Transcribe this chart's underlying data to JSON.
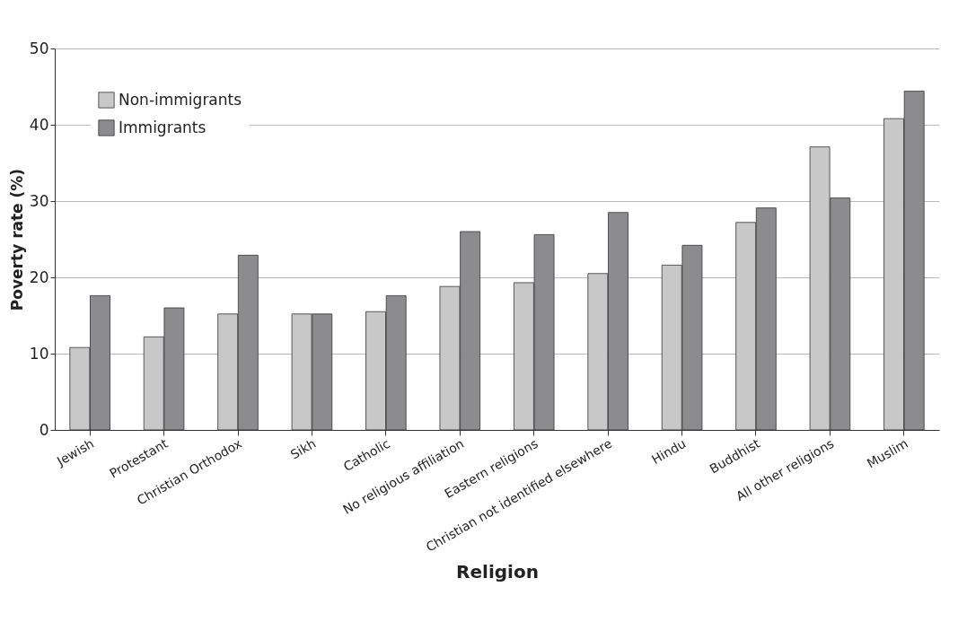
{
  "chart_data": {
    "type": "bar",
    "xlabel": "Religion",
    "ylabel": "Poverty rate (%)",
    "categories": [
      "Jewish",
      "Protestant",
      "Christian Orthodox",
      "Sikh",
      "Catholic",
      "No religious affiliation",
      "Eastern religions",
      "Christian not identified elsewhere",
      "Hindu",
      "Buddhist",
      "All other religions",
      "Muslim"
    ],
    "series": [
      {
        "name": "Non-immigrants",
        "color": "#c8c8c8",
        "values": [
          10.8,
          12.2,
          15.2,
          15.2,
          15.5,
          18.8,
          19.3,
          20.5,
          21.6,
          27.2,
          37.1,
          40.8
        ]
      },
      {
        "name": "Immigrants",
        "color": "#8c8c8e",
        "values": [
          17.6,
          16.0,
          22.9,
          15.2,
          17.6,
          26.0,
          25.6,
          28.5,
          24.2,
          29.1,
          30.4,
          44.4
        ]
      }
    ],
    "ylim": [
      0,
      50
    ],
    "yticks": [
      0,
      10,
      20,
      30,
      40,
      50
    ],
    "grid": "y",
    "legend": "top left"
  }
}
